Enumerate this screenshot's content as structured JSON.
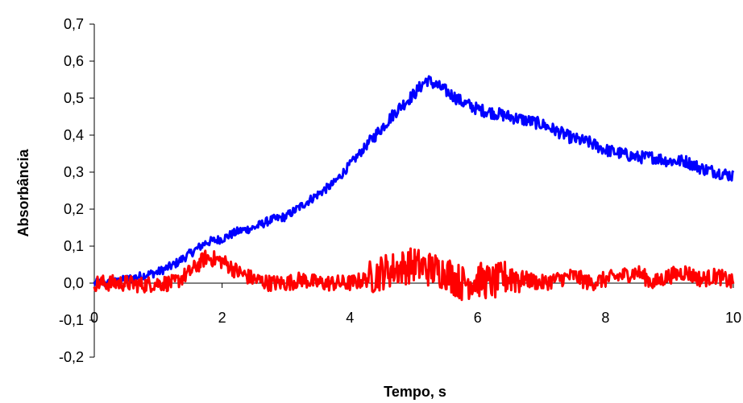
{
  "chart_data": {
    "type": "line",
    "title": "",
    "xlabel": "Tempo, s",
    "ylabel": "Absorbância",
    "xlim": [
      0,
      10
    ],
    "ylim": [
      -0.2,
      0.7
    ],
    "x_ticks": [
      0,
      2,
      4,
      6,
      8,
      10
    ],
    "x_tick_labels": [
      "0",
      "2",
      "4",
      "6",
      "8",
      "10"
    ],
    "y_ticks": [
      -0.2,
      -0.1,
      0.0,
      0.1,
      0.2,
      0.3,
      0.4,
      0.5,
      0.6,
      0.7
    ],
    "y_tick_labels": [
      "-0,2",
      "-0,1",
      "0,0",
      "0,1",
      "0,2",
      "0,3",
      "0,4",
      "0,5",
      "0,6",
      "0,7"
    ],
    "grid": false,
    "legend": "none",
    "series": [
      {
        "color": "#0000ff",
        "x": [
          0,
          0.25,
          0.5,
          0.75,
          1.0,
          1.25,
          1.5,
          1.75,
          2.0,
          2.25,
          2.5,
          2.75,
          3.0,
          3.25,
          3.5,
          3.75,
          4.0,
          4.25,
          4.5,
          4.75,
          5.0,
          5.2,
          5.5,
          5.75,
          6.0,
          6.25,
          6.5,
          6.75,
          7.0,
          7.25,
          7.5,
          7.75,
          8.0,
          8.25,
          8.5,
          8.75,
          9.0,
          9.25,
          9.5,
          9.75,
          10.0
        ],
        "y": [
          0.0,
          0.0,
          0.01,
          0.02,
          0.03,
          0.05,
          0.08,
          0.11,
          0.12,
          0.14,
          0.15,
          0.17,
          0.18,
          0.21,
          0.24,
          0.27,
          0.32,
          0.37,
          0.42,
          0.47,
          0.51,
          0.55,
          0.52,
          0.49,
          0.47,
          0.46,
          0.45,
          0.44,
          0.43,
          0.41,
          0.39,
          0.38,
          0.36,
          0.35,
          0.34,
          0.34,
          0.33,
          0.33,
          0.31,
          0.3,
          0.29
        ]
      },
      {
        "color": "#ff0000",
        "x": [
          0,
          0.25,
          0.5,
          0.75,
          1.0,
          1.25,
          1.5,
          1.75,
          2.0,
          2.25,
          2.5,
          2.75,
          3.0,
          3.25,
          3.5,
          3.75,
          4.0,
          4.25,
          4.5,
          4.75,
          5.0,
          5.2,
          5.5,
          5.75,
          6.0,
          6.25,
          6.5,
          6.75,
          7.0,
          7.25,
          7.5,
          7.75,
          8.0,
          8.25,
          8.5,
          8.75,
          9.0,
          9.25,
          9.5,
          9.75,
          10.0
        ],
        "y": [
          0.0,
          0.0,
          0.0,
          -0.005,
          0.0,
          0.0,
          0.03,
          0.07,
          0.06,
          0.03,
          0.01,
          0.0,
          0.0,
          0.01,
          0.0,
          0.0,
          0.0,
          0.01,
          0.03,
          0.04,
          0.05,
          0.04,
          0.03,
          0.0,
          0.01,
          0.0,
          0.02,
          0.01,
          0.0,
          0.01,
          0.02,
          0.0,
          0.01,
          0.02,
          0.03,
          0.0,
          0.02,
          0.03,
          0.01,
          0.02,
          0.0
        ]
      }
    ]
  }
}
